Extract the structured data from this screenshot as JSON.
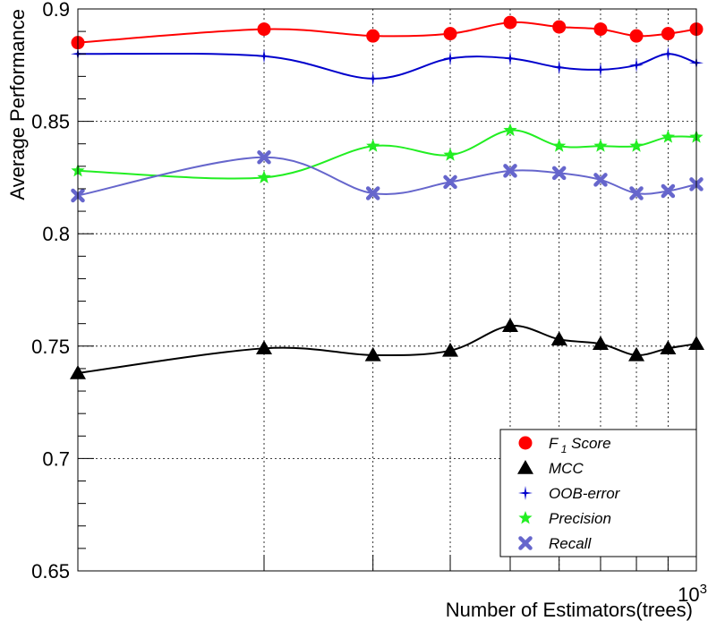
{
  "chart_data": {
    "type": "line",
    "title": "",
    "xlabel": "Number of Estimators(trees)",
    "ylabel": "Average Performance",
    "x_scale": "log",
    "x_exponent_label": "10",
    "x_exponent_power": "3",
    "xlim": [
      100,
      1000
    ],
    "ylim": [
      0.65,
      0.9
    ],
    "yticks": [
      0.65,
      0.7,
      0.75,
      0.8,
      0.85,
      0.9
    ],
    "ytick_labels": [
      "0.65",
      "0.7",
      "0.75",
      "0.8",
      "0.85",
      "0.9"
    ],
    "grid": true,
    "legend_position": "bottom-right",
    "x": [
      100,
      200,
      300,
      400,
      500,
      600,
      700,
      800,
      900,
      1000
    ],
    "series": [
      {
        "name": "F",
        "name_sub": "1",
        "name_tail": "Score",
        "marker": "circle",
        "color": "#ff0000",
        "markerColor": "#ff0000",
        "values": [
          0.885,
          0.891,
          0.888,
          0.889,
          0.894,
          0.892,
          0.891,
          0.888,
          0.889,
          0.891
        ]
      },
      {
        "name": "MCC",
        "marker": "triangle",
        "color": "#000000",
        "markerColor": "#000000",
        "values": [
          0.738,
          0.749,
          0.746,
          0.748,
          0.759,
          0.753,
          0.751,
          0.746,
          0.749,
          0.751
        ]
      },
      {
        "name": "OOB-error",
        "marker": "star4",
        "color": "#0000cc",
        "markerColor": "#0000cc",
        "values": [
          0.88,
          0.879,
          0.869,
          0.878,
          0.878,
          0.874,
          0.873,
          0.875,
          0.88,
          0.876
        ]
      },
      {
        "name": "Precision",
        "marker": "star5",
        "color": "#22ee22",
        "markerColor": "#22ee22",
        "values": [
          0.828,
          0.825,
          0.839,
          0.835,
          0.846,
          0.839,
          0.839,
          0.839,
          0.843,
          0.843
        ]
      },
      {
        "name": "Recall",
        "marker": "cross",
        "color": "#6666cc",
        "markerColor": "#6666cc",
        "values": [
          0.817,
          0.834,
          0.818,
          0.823,
          0.828,
          0.827,
          0.824,
          0.818,
          0.819,
          0.822
        ]
      }
    ]
  }
}
